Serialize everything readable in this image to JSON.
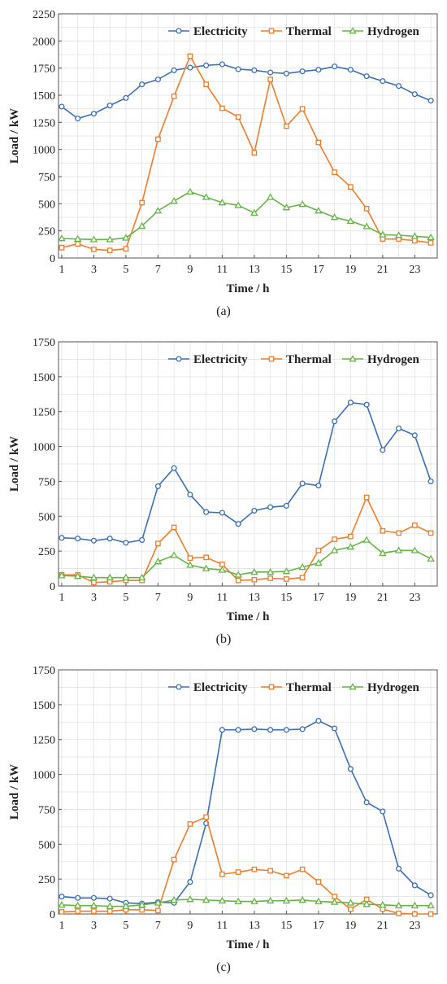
{
  "colors": {
    "electricity": "#3B6FB6",
    "thermal": "#EE7D2B",
    "hydrogen": "#66B446",
    "grid": "#e3e3e3",
    "axis": "#555555"
  },
  "chart_data": [
    {
      "type": "line",
      "caption": "(a)",
      "caption_letter": "a",
      "xlabel": "Time / h",
      "ylabel": "Load / kW",
      "xlim": [
        0.8,
        24.4
      ],
      "ylim": [
        0,
        2250
      ],
      "xticks": [
        1,
        3,
        5,
        7,
        9,
        11,
        13,
        15,
        17,
        19,
        21,
        23
      ],
      "xtick_labels": [
        "1",
        "3",
        "5",
        "7",
        "9",
        "11",
        "13",
        "15",
        "17",
        "19",
        "21",
        "23"
      ],
      "yticks": [
        0,
        250,
        500,
        750,
        1000,
        1250,
        1500,
        1750,
        2000,
        2250
      ],
      "ytick_labels": [
        "0",
        "250",
        "500",
        "750",
        "1000",
        "1250",
        "1500",
        "1750",
        "2000",
        "2250"
      ],
      "grid": true,
      "legend": "top-right",
      "x": [
        1,
        2,
        3,
        4,
        5,
        6,
        7,
        8,
        9,
        10,
        11,
        12,
        13,
        14,
        15,
        16,
        17,
        18,
        19,
        20,
        21,
        22,
        23,
        24
      ],
      "series": [
        {
          "name": "Electricity",
          "marker": "circle",
          "values": [
            1395,
            1285,
            1330,
            1405,
            1475,
            1600,
            1645,
            1730,
            1755,
            1775,
            1785,
            1740,
            1730,
            1710,
            1700,
            1720,
            1735,
            1765,
            1735,
            1675,
            1630,
            1585,
            1510,
            1450
          ]
        },
        {
          "name": "Thermal",
          "marker": "square",
          "values": [
            95,
            130,
            80,
            70,
            85,
            510,
            1095,
            1490,
            1860,
            1600,
            1380,
            1300,
            970,
            1645,
            1215,
            1375,
            1065,
            790,
            655,
            455,
            175,
            175,
            160,
            140
          ]
        },
        {
          "name": "Hydrogen",
          "marker": "triangle",
          "values": [
            180,
            175,
            170,
            170,
            185,
            295,
            435,
            525,
            610,
            560,
            510,
            485,
            415,
            560,
            465,
            495,
            435,
            375,
            340,
            290,
            215,
            210,
            200,
            190
          ]
        }
      ]
    },
    {
      "type": "line",
      "caption": "(b)",
      "caption_letter": "b",
      "xlabel": "Time / h",
      "ylabel": "Load / kW",
      "xlim": [
        0.8,
        24.4
      ],
      "ylim": [
        0,
        1750
      ],
      "xticks": [
        1,
        3,
        5,
        7,
        9,
        11,
        13,
        15,
        17,
        19,
        21,
        23
      ],
      "xtick_labels": [
        "1",
        "3",
        "5",
        "7",
        "9",
        "11",
        "13",
        "15",
        "17",
        "19",
        "21",
        "23"
      ],
      "yticks": [
        0,
        250,
        500,
        750,
        1000,
        1250,
        1500,
        1750
      ],
      "ytick_labels": [
        "0",
        "250",
        "500",
        "750",
        "1000",
        "1250",
        "1500",
        "1750"
      ],
      "grid": true,
      "legend": "top-right",
      "x": [
        1,
        2,
        3,
        4,
        5,
        6,
        7,
        8,
        9,
        10,
        11,
        12,
        13,
        14,
        15,
        16,
        17,
        18,
        19,
        20,
        21,
        22,
        23,
        24
      ],
      "series": [
        {
          "name": "Electricity",
          "marker": "circle",
          "values": [
            345,
            340,
            325,
            340,
            310,
            330,
            715,
            845,
            655,
            530,
            525,
            445,
            540,
            565,
            575,
            735,
            720,
            1180,
            1315,
            1300,
            975,
            1130,
            1080,
            750
          ]
        },
        {
          "name": "Thermal",
          "marker": "square",
          "values": [
            80,
            80,
            25,
            30,
            40,
            40,
            305,
            420,
            200,
            205,
            155,
            40,
            45,
            55,
            50,
            60,
            255,
            335,
            355,
            635,
            395,
            380,
            435,
            380
          ]
        },
        {
          "name": "Hydrogen",
          "marker": "triangle",
          "values": [
            75,
            70,
            60,
            60,
            60,
            60,
            175,
            220,
            150,
            125,
            115,
            80,
            100,
            100,
            105,
            135,
            165,
            255,
            280,
            330,
            235,
            255,
            255,
            195
          ]
        }
      ]
    },
    {
      "type": "line",
      "caption": "(c)",
      "caption_letter": "c",
      "xlabel": "Time / h",
      "ylabel": "Load / kW",
      "xlim": [
        0.8,
        24.4
      ],
      "ylim": [
        0,
        1750
      ],
      "xticks": [
        1,
        3,
        5,
        7,
        9,
        11,
        13,
        15,
        17,
        19,
        21,
        23
      ],
      "xtick_labels": [
        "1",
        "3",
        "5",
        "7",
        "9",
        "11",
        "13",
        "15",
        "17",
        "19",
        "21",
        "23"
      ],
      "yticks": [
        0,
        250,
        500,
        750,
        1000,
        1250,
        1500,
        1750
      ],
      "ytick_labels": [
        "0",
        "250",
        "500",
        "750",
        "1000",
        "1250",
        "1500",
        "1750"
      ],
      "grid": true,
      "legend": "top-right",
      "x": [
        1,
        2,
        3,
        4,
        5,
        6,
        7,
        8,
        9,
        10,
        11,
        12,
        13,
        14,
        15,
        16,
        17,
        18,
        19,
        20,
        21,
        22,
        23,
        24
      ],
      "series": [
        {
          "name": "Electricity",
          "marker": "circle",
          "values": [
            125,
            115,
            115,
            110,
            80,
            75,
            85,
            80,
            230,
            650,
            1320,
            1320,
            1325,
            1320,
            1320,
            1325,
            1385,
            1330,
            1040,
            800,
            735,
            325,
            205,
            135
          ]
        },
        {
          "name": "Thermal",
          "marker": "square",
          "values": [
            15,
            20,
            20,
            20,
            30,
            30,
            25,
            390,
            645,
            695,
            285,
            300,
            320,
            310,
            275,
            320,
            230,
            125,
            35,
            105,
            35,
            5,
            0,
            0
          ]
        },
        {
          "name": "Hydrogen",
          "marker": "triangle",
          "values": [
            65,
            60,
            60,
            55,
            55,
            65,
            80,
            100,
            105,
            100,
            95,
            90,
            90,
            95,
            95,
            100,
            90,
            85,
            80,
            70,
            65,
            60,
            60,
            60
          ]
        }
      ]
    }
  ]
}
